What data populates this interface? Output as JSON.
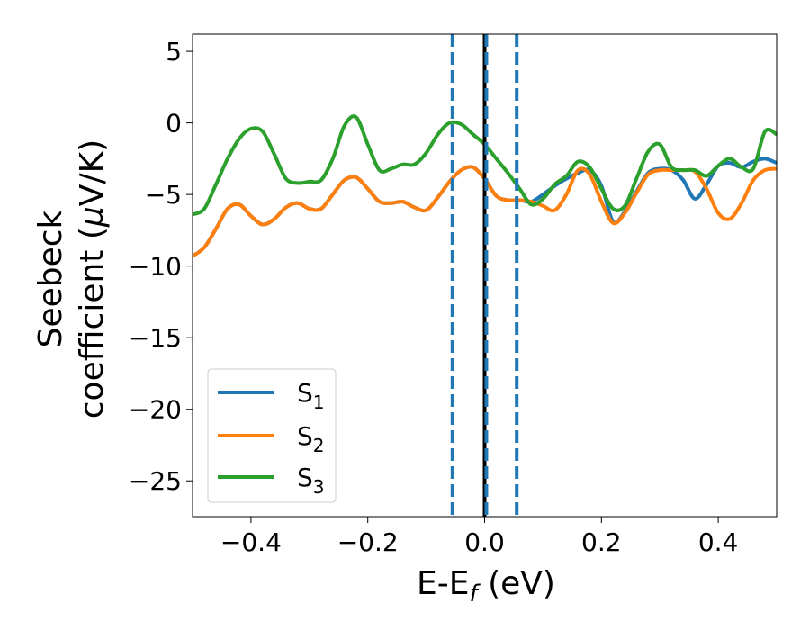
{
  "chart_data": {
    "type": "line",
    "xlabel": "E-E",
    "xlabel_subscript": "f",
    "xlabel_unit": " (eV)",
    "ylabel_line1": "Seebeck",
    "ylabel_line2_prefix": "coefficient  (",
    "ylabel_mu": "μ",
    "ylabel_line2_suffix": "V/K)",
    "xlim": [
      -0.5,
      0.5
    ],
    "ylim": [
      -27.5,
      6.2
    ],
    "x_ticks": [
      -0.4,
      -0.2,
      0.0,
      0.2,
      0.4
    ],
    "x_tick_labels": [
      "−0.4",
      "−0.2",
      "0.0",
      "0.2",
      "0.4"
    ],
    "y_ticks": [
      5,
      0,
      -5,
      -10,
      -15,
      -20,
      -25
    ],
    "y_tick_labels": [
      "5",
      "0",
      "−5",
      "−10",
      "−15",
      "−20",
      "−25"
    ],
    "grid": false,
    "legend_position": "lower-left",
    "vlines": [
      {
        "x": -0.055,
        "style": "dashed",
        "color": "#1f77b4"
      },
      {
        "x": 0.0,
        "style": "solid",
        "color": "#000000"
      },
      {
        "x": 0.003,
        "style": "dashed",
        "color": "#1f77b4"
      },
      {
        "x": 0.055,
        "style": "dashed",
        "color": "#1f77b4"
      }
    ],
    "series": [
      {
        "name": "S",
        "subscript": "1",
        "color": "#1f77b4",
        "x": [
          -0.5,
          -0.48,
          -0.46,
          -0.44,
          -0.42,
          -0.4,
          -0.38,
          -0.36,
          -0.34,
          -0.32,
          -0.3,
          -0.28,
          -0.26,
          -0.24,
          -0.22,
          -0.2,
          -0.18,
          -0.16,
          -0.14,
          -0.12,
          -0.1,
          -0.08,
          -0.06,
          -0.04,
          -0.02,
          0.0,
          0.02,
          0.04,
          0.06,
          0.08,
          0.1,
          0.12,
          0.14,
          0.16,
          0.18,
          0.2,
          0.22,
          0.24,
          0.26,
          0.28,
          0.3,
          0.32,
          0.34,
          0.36,
          0.38,
          0.4,
          0.42,
          0.44,
          0.46,
          0.48,
          0.5
        ],
        "y": [
          -9.3,
          -8.7,
          -7.4,
          -6.0,
          -5.7,
          -6.5,
          -7.1,
          -6.7,
          -5.9,
          -5.6,
          -6.0,
          -6.0,
          -5.0,
          -4.0,
          -3.8,
          -4.6,
          -5.5,
          -5.6,
          -5.5,
          -5.9,
          -6.1,
          -5.2,
          -4.1,
          -3.3,
          -3.1,
          -3.9,
          -5.1,
          -5.4,
          -5.4,
          -5.5,
          -5.0,
          -4.4,
          -3.9,
          -3.5,
          -3.3,
          -4.4,
          -6.9,
          -6.2,
          -4.8,
          -3.5,
          -3.2,
          -3.3,
          -4.0,
          -5.3,
          -4.3,
          -3.0,
          -2.8,
          -3.1,
          -2.7,
          -2.5,
          -2.8
        ]
      },
      {
        "name": "S",
        "subscript": "2",
        "color": "#ff7f0e",
        "x": [
          -0.5,
          -0.48,
          -0.46,
          -0.44,
          -0.42,
          -0.4,
          -0.38,
          -0.36,
          -0.34,
          -0.32,
          -0.3,
          -0.28,
          -0.26,
          -0.24,
          -0.22,
          -0.2,
          -0.18,
          -0.16,
          -0.14,
          -0.12,
          -0.1,
          -0.08,
          -0.06,
          -0.04,
          -0.02,
          0.0,
          0.02,
          0.04,
          0.06,
          0.08,
          0.1,
          0.12,
          0.14,
          0.16,
          0.18,
          0.2,
          0.22,
          0.24,
          0.26,
          0.28,
          0.3,
          0.32,
          0.34,
          0.36,
          0.38,
          0.4,
          0.42,
          0.44,
          0.46,
          0.48,
          0.5
        ],
        "y": [
          -9.3,
          -8.7,
          -7.4,
          -6.0,
          -5.7,
          -6.5,
          -7.1,
          -6.7,
          -5.9,
          -5.6,
          -6.0,
          -6.0,
          -5.0,
          -4.0,
          -3.8,
          -4.6,
          -5.5,
          -5.6,
          -5.5,
          -5.9,
          -6.1,
          -5.2,
          -4.1,
          -3.3,
          -3.1,
          -3.9,
          -5.1,
          -5.4,
          -5.4,
          -5.5,
          -5.8,
          -6.1,
          -5.0,
          -3.3,
          -3.6,
          -5.5,
          -7.0,
          -6.3,
          -4.9,
          -3.6,
          -3.3,
          -3.3,
          -3.3,
          -3.4,
          -4.6,
          -6.3,
          -6.7,
          -5.6,
          -4.0,
          -3.3,
          -3.2
        ]
      },
      {
        "name": "S",
        "subscript": "3",
        "color": "#2ca02c",
        "x": [
          -0.5,
          -0.48,
          -0.46,
          -0.44,
          -0.42,
          -0.4,
          -0.38,
          -0.36,
          -0.34,
          -0.32,
          -0.3,
          -0.28,
          -0.26,
          -0.24,
          -0.22,
          -0.2,
          -0.18,
          -0.16,
          -0.14,
          -0.12,
          -0.1,
          -0.08,
          -0.06,
          -0.04,
          -0.02,
          0.0,
          0.02,
          0.04,
          0.06,
          0.08,
          0.1,
          0.12,
          0.14,
          0.16,
          0.18,
          0.2,
          0.22,
          0.24,
          0.26,
          0.28,
          0.3,
          0.32,
          0.34,
          0.36,
          0.38,
          0.4,
          0.42,
          0.44,
          0.46,
          0.48,
          0.5
        ],
        "y": [
          -6.4,
          -6.0,
          -4.3,
          -2.5,
          -1.1,
          -0.4,
          -0.6,
          -2.2,
          -3.9,
          -4.2,
          -4.1,
          -4.0,
          -2.5,
          -0.2,
          0.4,
          -1.5,
          -3.3,
          -3.2,
          -2.9,
          -2.9,
          -2.1,
          -0.8,
          0.0,
          -0.1,
          -0.8,
          -1.5,
          -2.5,
          -3.5,
          -4.6,
          -5.7,
          -5.3,
          -4.3,
          -3.7,
          -2.7,
          -3.1,
          -4.6,
          -6.0,
          -5.8,
          -3.9,
          -2.0,
          -1.5,
          -3.1,
          -3.3,
          -3.3,
          -3.7,
          -3.0,
          -2.5,
          -3.1,
          -3.2,
          -0.6,
          -0.8
        ]
      }
    ]
  }
}
